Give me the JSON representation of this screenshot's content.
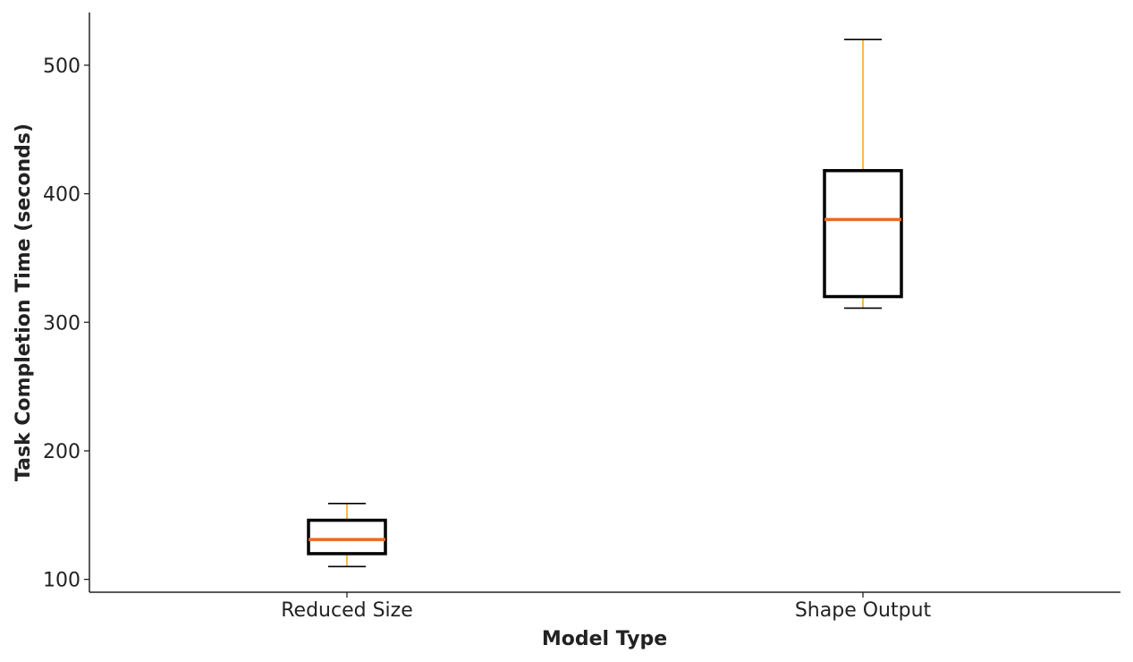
{
  "chart_data": {
    "type": "box",
    "title": "",
    "xlabel": "Model Type",
    "ylabel": "Task Completion Time (seconds)",
    "ylim": [
      90,
      541
    ],
    "yticks": [
      100,
      200,
      300,
      400,
      500
    ],
    "grid": false,
    "legend": "none",
    "categories": [
      "Reduced Size",
      "Shape Output"
    ],
    "boxes": [
      {
        "category": "Reduced Size",
        "whisker_low": 110,
        "q1": 120,
        "median": 131,
        "q3": 146,
        "whisker_high": 159
      },
      {
        "category": "Shape Output",
        "whisker_low": 311,
        "q1": 320,
        "median": 380,
        "q3": 418,
        "whisker_high": 520
      }
    ],
    "colors": {
      "box": "#000000",
      "median": "#e8692a",
      "whisker": "#f2a81d",
      "cap": "#000000",
      "axis": "#222222"
    }
  }
}
